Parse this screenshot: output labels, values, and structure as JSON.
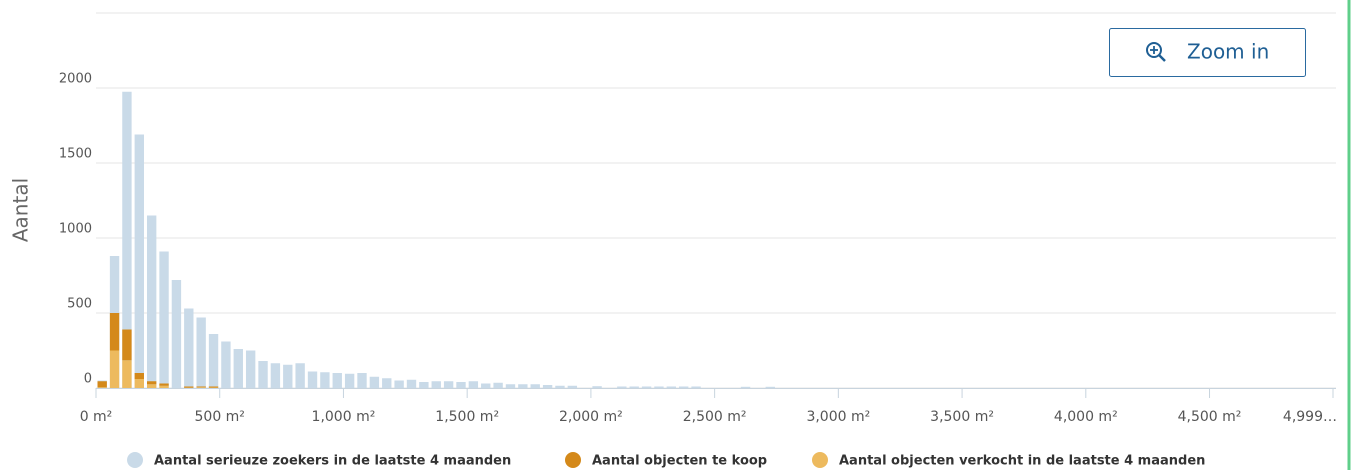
{
  "chart_data": {
    "type": "histogram",
    "y_label": "Aantal",
    "bins": [
      0,
      50,
      100,
      150,
      200,
      250,
      300,
      350,
      400,
      450,
      500,
      550,
      600,
      650,
      700,
      750,
      800,
      850,
      900,
      950,
      1000,
      1050,
      1100,
      1150,
      1200,
      1250,
      1300,
      1350,
      1400,
      1450,
      1500,
      1550,
      1600,
      1650,
      1700,
      1750,
      1800,
      1850,
      1900,
      1950,
      2000,
      2050,
      2100,
      2150,
      2200,
      2250,
      2300,
      2350,
      2400,
      2450,
      2500,
      2550,
      2600,
      2650,
      2700,
      2750
    ],
    "series": [
      {
        "name": "Aantal serieuze zoekers in de laatste 4 maanden",
        "color": "#c9dae8",
        "values": [
          50,
          880,
          1975,
          1690,
          1150,
          910,
          720,
          530,
          470,
          360,
          310,
          260,
          250,
          180,
          165,
          155,
          165,
          110,
          105,
          100,
          95,
          100,
          75,
          65,
          50,
          55,
          40,
          45,
          45,
          40,
          45,
          30,
          35,
          25,
          25,
          25,
          20,
          15,
          15,
          0,
          12,
          0,
          10,
          10,
          10,
          10,
          10,
          10,
          10,
          0,
          0,
          0,
          8,
          0,
          8
        ]
      },
      {
        "name": "Aantal objecten te koop",
        "color": "#d4891a",
        "values": [
          40,
          250,
          205,
          40,
          20,
          15,
          0,
          8,
          5,
          7,
          0,
          0,
          0,
          0,
          0,
          0,
          0,
          0,
          0,
          0,
          0,
          0,
          0,
          0,
          0,
          0,
          0,
          0,
          0,
          0,
          0,
          0,
          0,
          0,
          0,
          0,
          0,
          0,
          0,
          0,
          0,
          0,
          0,
          0,
          0,
          0,
          0,
          0,
          0,
          0,
          0,
          0,
          0,
          0,
          0
        ]
      },
      {
        "name": "Aantal objecten verkocht in de laatste 4 maanden",
        "color": "#edba5e",
        "values": [
          5,
          250,
          185,
          60,
          25,
          15,
          0,
          2,
          5,
          3,
          0,
          0,
          0,
          0,
          0,
          0,
          0,
          0,
          0,
          0,
          0,
          0,
          0,
          0,
          0,
          0,
          0,
          0,
          0,
          0,
          0,
          0,
          0,
          0,
          0,
          0,
          0,
          0,
          0,
          0,
          0,
          0,
          0,
          0,
          0,
          0,
          0,
          0,
          0,
          0,
          0,
          0,
          0,
          0,
          0
        ]
      }
    ],
    "xlim": [
      0,
      4999
    ],
    "xticks": [
      {
        "value": 0,
        "label": "0 m²"
      },
      {
        "value": 500,
        "label": "500 m²"
      },
      {
        "value": 1000,
        "label": "1,000 m²"
      },
      {
        "value": 1500,
        "label": "1,500 m²"
      },
      {
        "value": 2000,
        "label": "2,000 m²"
      },
      {
        "value": 2500,
        "label": "2,500 m²"
      },
      {
        "value": 3000,
        "label": "3,000 m²"
      },
      {
        "value": 3500,
        "label": "3,500 m²"
      },
      {
        "value": 4000,
        "label": "4,000 m²"
      },
      {
        "value": 4500,
        "label": "4,500 m²"
      },
      {
        "value": 4999,
        "label": "4,999…"
      }
    ],
    "ylim": [
      0,
      2500
    ],
    "yticks": [
      0,
      500,
      1000,
      1500,
      2000
    ],
    "grid": true
  },
  "zoom_button": "Zoom in"
}
